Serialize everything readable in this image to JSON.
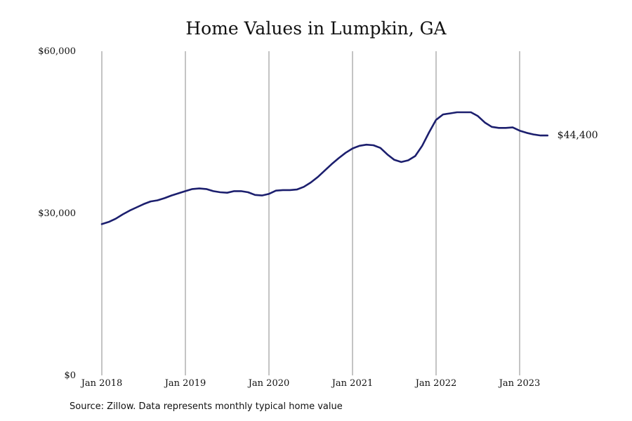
{
  "chart_data": {
    "type": "line",
    "title": "Home Values in Lumpkin, GA",
    "xlabel": "",
    "ylabel": "",
    "ylim": [
      0,
      60000
    ],
    "y_ticks": [
      {
        "value": 0,
        "label": "$0"
      },
      {
        "value": 30000,
        "label": "$30,000"
      },
      {
        "value": 60000,
        "label": "$60,000"
      }
    ],
    "x_ticks": [
      {
        "value": "2018-01",
        "label": "Jan 2018"
      },
      {
        "value": "2019-01",
        "label": "Jan 2019"
      },
      {
        "value": "2020-01",
        "label": "Jan 2020"
      },
      {
        "value": "2021-01",
        "label": "Jan 2021"
      },
      {
        "value": "2022-01",
        "label": "Jan 2022"
      },
      {
        "value": "2023-01",
        "label": "Jan 2023"
      }
    ],
    "grid": {
      "vertical": true,
      "horizontal": false
    },
    "legend": "none",
    "line_color": "#1c1f6e",
    "end_label": "$44,400",
    "series": [
      {
        "x": [
          "2018-01",
          "2018-02",
          "2018-03",
          "2018-04",
          "2018-05",
          "2018-06",
          "2018-07",
          "2018-08",
          "2018-09",
          "2018-10",
          "2018-11",
          "2018-12",
          "2019-01",
          "2019-02",
          "2019-03",
          "2019-04",
          "2019-05",
          "2019-06",
          "2019-07",
          "2019-08",
          "2019-09",
          "2019-10",
          "2019-11",
          "2019-12",
          "2020-01",
          "2020-02",
          "2020-03",
          "2020-04",
          "2020-05",
          "2020-06",
          "2020-07",
          "2020-08",
          "2020-09",
          "2020-10",
          "2020-11",
          "2020-12",
          "2021-01",
          "2021-02",
          "2021-03",
          "2021-04",
          "2021-05",
          "2021-06",
          "2021-07",
          "2021-08",
          "2021-09",
          "2021-10",
          "2021-11",
          "2021-12",
          "2022-01",
          "2022-02",
          "2022-03",
          "2022-04",
          "2022-05",
          "2022-06",
          "2022-07",
          "2022-08",
          "2022-09",
          "2022-10",
          "2022-11",
          "2022-12",
          "2023-01",
          "2023-02",
          "2023-03",
          "2023-04",
          "2023-05"
        ],
        "values": [
          28000,
          28400,
          29000,
          29800,
          30500,
          31100,
          31700,
          32200,
          32400,
          32800,
          33300,
          33700,
          34100,
          34500,
          34600,
          34500,
          34100,
          33900,
          33800,
          34100,
          34100,
          33900,
          33400,
          33300,
          33600,
          34200,
          34300,
          34300,
          34400,
          34900,
          35700,
          36700,
          37900,
          39100,
          40200,
          41200,
          42000,
          42500,
          42700,
          42600,
          42100,
          40900,
          39900,
          39500,
          39800,
          40600,
          42500,
          45000,
          47300,
          48300,
          48500,
          48700,
          48700,
          48700,
          48000,
          46800,
          46000,
          45800,
          45800,
          45900,
          45300,
          44900,
          44600,
          44400,
          44400
        ]
      }
    ]
  },
  "source_note": "Source: Zillow. Data represents monthly typical home value"
}
